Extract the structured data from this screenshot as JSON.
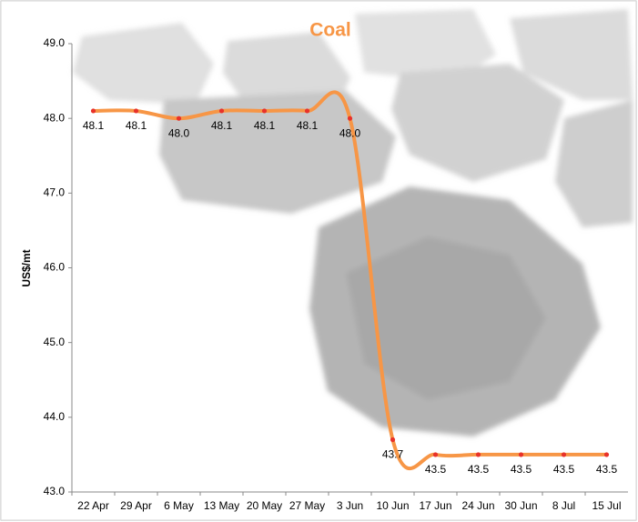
{
  "chart_data": {
    "type": "line",
    "title": "Coal",
    "y_label": "US$/mt",
    "categories": [
      "22 Apr",
      "29 Apr",
      "6 May",
      "13 May",
      "20 May",
      "27 May",
      "3 Jun",
      "10 Jun",
      "17 Jun",
      "24 Jun",
      "30 Jun",
      "8 Jul",
      "15 Jul"
    ],
    "series": [
      {
        "name": "Coal",
        "color": "#f79646",
        "marker_color": "#e8322a",
        "values": [
          48.1,
          48.1,
          48.0,
          48.1,
          48.1,
          48.1,
          48.0,
          43.7,
          43.5,
          43.5,
          43.5,
          43.5,
          43.5
        ],
        "value_labels": [
          "48.1",
          "48.1",
          "48.0",
          "48.1",
          "48.1",
          "48.1",
          "48.0",
          "43.7",
          "43.5",
          "43.5",
          "43.5",
          "43.5",
          "43.5"
        ]
      }
    ],
    "ylim": [
      43,
      49
    ],
    "yticks": [
      {
        "value": 43,
        "label": "43.0"
      },
      {
        "value": 44,
        "label": "44.0"
      },
      {
        "value": 45,
        "label": "45.0"
      },
      {
        "value": 46,
        "label": "46.0"
      },
      {
        "value": 47,
        "label": "47.0"
      },
      {
        "value": 48,
        "label": "48.0"
      },
      {
        "value": 49,
        "label": "49.0"
      }
    ],
    "grid": false,
    "smooth": true
  }
}
